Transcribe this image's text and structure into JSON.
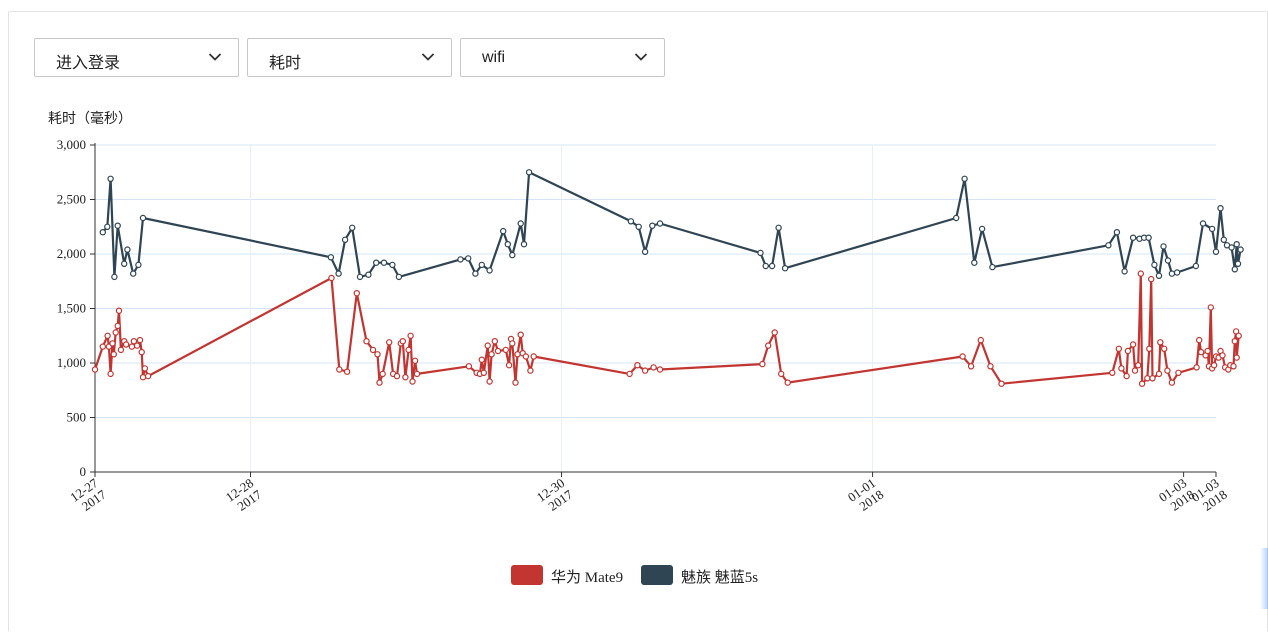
{
  "filters": [
    {
      "name": "event-select",
      "value": "进入登录"
    },
    {
      "name": "metric-select",
      "value": "耗时"
    },
    {
      "name": "network-select",
      "value": "wifi"
    }
  ],
  "chart_data": {
    "type": "line",
    "ylabel": "耗时（毫秒）",
    "ylim": [
      0,
      3000
    ],
    "yticks": [
      0,
      500,
      1000,
      1500,
      2000,
      2500,
      3000
    ],
    "ytick_labels": [
      "0",
      "500",
      "1,000",
      "1,500",
      "2,000",
      "2,500",
      "3,000"
    ],
    "xlim": [
      "2017-12-27 00:00",
      "2018-01-03 05:00"
    ],
    "xticks": [
      {
        "at": "2017-12-27 00:00",
        "label": [
          "12-27",
          "2017"
        ]
      },
      {
        "at": "2017-12-28 00:00",
        "label": [
          "12-28",
          "2017"
        ]
      },
      {
        "at": "2017-12-30 00:00",
        "label": [
          "12-30",
          "2017"
        ]
      },
      {
        "at": "2018-01-01 00:00",
        "label": [
          "01-01",
          "2018"
        ]
      },
      {
        "at": "2018-01-03 00:00",
        "label": [
          "01-03",
          "2018"
        ]
      },
      {
        "at": "2018-01-03 05:00",
        "label": [
          "01-03",
          "2018"
        ]
      }
    ],
    "gridlines": [
      "2017-12-28 00:00",
      "2017-12-30 00:00",
      "2018-01-01 00:00"
    ],
    "legend_position": "bottom",
    "series": [
      {
        "name": "华为 Mate9",
        "color": "#c23531",
        "points": [
          [
            "2017-12-27 00:00",
            940
          ],
          [
            "2017-12-27 01:12",
            1150
          ],
          [
            "2017-12-27 01:57",
            1250
          ],
          [
            "2017-12-27 02:09",
            1150
          ],
          [
            "2017-12-27 02:24",
            900
          ],
          [
            "2017-12-27 02:42",
            1180
          ],
          [
            "2017-12-27 02:54",
            1080
          ],
          [
            "2017-12-27 03:12",
            1280
          ],
          [
            "2017-12-27 03:30",
            1340
          ],
          [
            "2017-12-27 03:42",
            1480
          ],
          [
            "2017-12-27 04:00",
            1120
          ],
          [
            "2017-12-27 04:30",
            1200
          ],
          [
            "2017-12-27 04:48",
            1170
          ],
          [
            "2017-12-27 05:42",
            1150
          ],
          [
            "2017-12-27 06:00",
            1200
          ],
          [
            "2017-12-27 06:30",
            1160
          ],
          [
            "2017-12-27 06:57",
            1210
          ],
          [
            "2017-12-27 07:12",
            1100
          ],
          [
            "2017-12-27 07:24",
            870
          ],
          [
            "2017-12-27 07:42",
            950
          ],
          [
            "2017-12-27 08:12",
            880
          ],
          [
            "2017-12-28 12:30",
            1780
          ],
          [
            "2017-12-28 13:42",
            940
          ],
          [
            "2017-12-28 14:54",
            920
          ],
          [
            "2017-12-28 16:24",
            1640
          ],
          [
            "2017-12-28 17:54",
            1200
          ],
          [
            "2017-12-28 18:54",
            1120
          ],
          [
            "2017-12-28 19:36",
            1080
          ],
          [
            "2017-12-28 19:54",
            820
          ],
          [
            "2017-12-28 20:24",
            900
          ],
          [
            "2017-12-28 21:24",
            1190
          ],
          [
            "2017-12-28 22:00",
            900
          ],
          [
            "2017-12-28 22:36",
            880
          ],
          [
            "2017-12-28 23:12",
            1180
          ],
          [
            "2017-12-28 23:30",
            1200
          ],
          [
            "2017-12-28 23:54",
            870
          ],
          [
            "2017-12-29 00:24",
            1120
          ],
          [
            "2017-12-29 00:42",
            1250
          ],
          [
            "2017-12-29 01:00",
            830
          ],
          [
            "2017-12-29 01:24",
            1020
          ],
          [
            "2017-12-29 01:42",
            900
          ],
          [
            "2017-12-29 09:42",
            970
          ],
          [
            "2017-12-29 10:54",
            910
          ],
          [
            "2017-12-29 11:24",
            900
          ],
          [
            "2017-12-29 11:42",
            1030
          ],
          [
            "2017-12-29 12:00",
            910
          ],
          [
            "2017-12-29 12:36",
            1160
          ],
          [
            "2017-12-29 12:54",
            830
          ],
          [
            "2017-12-29 13:12",
            1080
          ],
          [
            "2017-12-29 13:42",
            1200
          ],
          [
            "2017-12-29 14:12",
            1110
          ],
          [
            "2017-12-29 15:24",
            1120
          ],
          [
            "2017-12-29 15:54",
            980
          ],
          [
            "2017-12-29 16:12",
            1220
          ],
          [
            "2017-12-29 16:24",
            1180
          ],
          [
            "2017-12-29 16:54",
            820
          ],
          [
            "2017-12-29 17:12",
            1080
          ],
          [
            "2017-12-29 17:42",
            1260
          ],
          [
            "2017-12-29 18:00",
            1090
          ],
          [
            "2017-12-29 18:30",
            1060
          ],
          [
            "2017-12-29 19:12",
            930
          ],
          [
            "2017-12-29 19:42",
            1060
          ],
          [
            "2017-12-30 10:30",
            900
          ],
          [
            "2017-12-30 11:42",
            980
          ],
          [
            "2017-12-30 12:54",
            930
          ],
          [
            "2017-12-30 14:12",
            960
          ],
          [
            "2017-12-30 15:12",
            940
          ],
          [
            "2017-12-31 07:00",
            990
          ],
          [
            "2017-12-31 07:54",
            1160
          ],
          [
            "2017-12-31 08:54",
            1280
          ],
          [
            "2017-12-31 09:54",
            900
          ],
          [
            "2017-12-31 10:54",
            820
          ],
          [
            "2018-01-01 13:54",
            1060
          ],
          [
            "2018-01-01 15:12",
            970
          ],
          [
            "2018-01-01 16:42",
            1210
          ],
          [
            "2018-01-01 18:12",
            970
          ],
          [
            "2018-01-01 19:54",
            810
          ],
          [
            "2018-01-02 13:00",
            910
          ],
          [
            "2018-01-02 14:00",
            1130
          ],
          [
            "2018-01-02 14:24",
            950
          ],
          [
            "2018-01-02 15:12",
            880
          ],
          [
            "2018-01-02 15:24",
            1110
          ],
          [
            "2018-01-02 16:12",
            1170
          ],
          [
            "2018-01-02 16:30",
            930
          ],
          [
            "2018-01-02 17:00",
            980
          ],
          [
            "2018-01-02 17:24",
            1820
          ],
          [
            "2018-01-02 17:36",
            810
          ],
          [
            "2018-01-02 18:24",
            860
          ],
          [
            "2018-01-02 18:42",
            1130
          ],
          [
            "2018-01-02 19:00",
            1770
          ],
          [
            "2018-01-02 19:12",
            860
          ],
          [
            "2018-01-02 20:12",
            900
          ],
          [
            "2018-01-02 20:24",
            1190
          ],
          [
            "2018-01-02 21:00",
            1130
          ],
          [
            "2018-01-02 21:30",
            930
          ],
          [
            "2018-01-02 22:12",
            820
          ],
          [
            "2018-01-02 23:12",
            910
          ],
          [
            "2018-01-03 02:00",
            960
          ],
          [
            "2018-01-03 02:24",
            1210
          ],
          [
            "2018-01-03 02:42",
            1100
          ],
          [
            "2018-01-03 03:24",
            1070
          ],
          [
            "2018-01-03 03:42",
            1110
          ],
          [
            "2018-01-03 03:54",
            970
          ],
          [
            "2018-01-03 04:12",
            1510
          ],
          [
            "2018-01-03 04:24",
            950
          ],
          [
            "2018-01-03 04:42",
            980
          ],
          [
            "2018-01-03 05:00",
            1060
          ],
          [
            "2018-01-03 05:24",
            1050
          ],
          [
            "2018-01-03 05:42",
            1110
          ],
          [
            "2018-01-03 06:00",
            1070
          ],
          [
            "2018-01-03 06:24",
            960
          ],
          [
            "2018-01-03 06:54",
            940
          ],
          [
            "2018-01-03 07:12",
            980
          ],
          [
            "2018-01-03 07:42",
            970
          ],
          [
            "2018-01-03 07:54",
            1200
          ],
          [
            "2018-01-03 08:06",
            1290
          ],
          [
            "2018-01-03 08:12",
            1050
          ],
          [
            "2018-01-03 08:30",
            1250
          ]
        ]
      },
      {
        "name": "魅族 魅蓝5s",
        "color": "#2f4554",
        "points": [
          [
            "2017-12-27 01:12",
            2200
          ],
          [
            "2017-12-27 01:54",
            2250
          ],
          [
            "2017-12-27 02:24",
            2690
          ],
          [
            "2017-12-27 03:00",
            1790
          ],
          [
            "2017-12-27 03:30",
            2260
          ],
          [
            "2017-12-27 04:30",
            1910
          ],
          [
            "2017-12-27 05:00",
            2040
          ],
          [
            "2017-12-27 05:54",
            1820
          ],
          [
            "2017-12-27 06:42",
            1900
          ],
          [
            "2017-12-27 07:24",
            2330
          ],
          [
            "2017-12-28 12:24",
            1970
          ],
          [
            "2017-12-28 13:36",
            1820
          ],
          [
            "2017-12-28 14:36",
            2130
          ],
          [
            "2017-12-28 15:42",
            2240
          ],
          [
            "2017-12-28 16:54",
            1790
          ],
          [
            "2017-12-28 18:12",
            1810
          ],
          [
            "2017-12-28 19:24",
            1920
          ],
          [
            "2017-12-28 20:36",
            1920
          ],
          [
            "2017-12-28 21:54",
            1900
          ],
          [
            "2017-12-28 22:54",
            1790
          ],
          [
            "2017-12-29 08:24",
            1950
          ],
          [
            "2017-12-29 09:36",
            1960
          ],
          [
            "2017-12-29 10:42",
            1820
          ],
          [
            "2017-12-29 11:42",
            1900
          ],
          [
            "2017-12-29 12:54",
            1850
          ],
          [
            "2017-12-29 15:00",
            2210
          ],
          [
            "2017-12-29 15:42",
            2090
          ],
          [
            "2017-12-29 16:24",
            1990
          ],
          [
            "2017-12-29 17:42",
            2280
          ],
          [
            "2017-12-29 18:12",
            2090
          ],
          [
            "2017-12-29 19:00",
            2750
          ],
          [
            "2017-12-30 10:42",
            2300
          ],
          [
            "2017-12-30 11:54",
            2250
          ],
          [
            "2017-12-30 12:54",
            2020
          ],
          [
            "2017-12-30 14:00",
            2260
          ],
          [
            "2017-12-30 15:12",
            2280
          ],
          [
            "2017-12-31 06:42",
            2010
          ],
          [
            "2017-12-31 07:30",
            1890
          ],
          [
            "2017-12-31 08:30",
            1890
          ],
          [
            "2017-12-31 09:30",
            2240
          ],
          [
            "2017-12-31 10:30",
            1870
          ],
          [
            "2018-01-01 12:54",
            2330
          ],
          [
            "2018-01-01 14:12",
            2690
          ],
          [
            "2018-01-01 15:42",
            1920
          ],
          [
            "2018-01-01 16:54",
            2230
          ],
          [
            "2018-01-01 18:30",
            1880
          ],
          [
            "2018-01-02 12:24",
            2080
          ],
          [
            "2018-01-02 13:42",
            2200
          ],
          [
            "2018-01-02 14:54",
            1840
          ],
          [
            "2018-01-02 16:12",
            2150
          ],
          [
            "2018-01-02 17:12",
            2140
          ],
          [
            "2018-01-02 17:54",
            2150
          ],
          [
            "2018-01-02 18:36",
            2150
          ],
          [
            "2018-01-02 19:30",
            1900
          ],
          [
            "2018-01-02 20:12",
            1800
          ],
          [
            "2018-01-02 20:54",
            2070
          ],
          [
            "2018-01-02 21:36",
            1940
          ],
          [
            "2018-01-02 22:12",
            1820
          ],
          [
            "2018-01-02 23:00",
            1830
          ],
          [
            "2018-01-03 01:54",
            1890
          ],
          [
            "2018-01-03 03:00",
            2280
          ],
          [
            "2018-01-03 04:24",
            2230
          ],
          [
            "2018-01-03 05:00",
            2020
          ],
          [
            "2018-01-03 05:42",
            2420
          ],
          [
            "2018-01-03 06:12",
            2130
          ],
          [
            "2018-01-03 06:42",
            2080
          ],
          [
            "2018-01-03 07:24",
            2060
          ],
          [
            "2018-01-03 07:54",
            1860
          ],
          [
            "2018-01-03 08:12",
            2090
          ],
          [
            "2018-01-03 08:24",
            1910
          ],
          [
            "2018-01-03 08:48",
            2040
          ]
        ]
      }
    ]
  }
}
